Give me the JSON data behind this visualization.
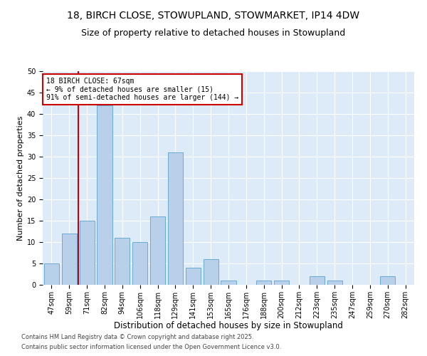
{
  "title_line1": "18, BIRCH CLOSE, STOWUPLAND, STOWMARKET, IP14 4DW",
  "title_line2": "Size of property relative to detached houses in Stowupland",
  "xlabel": "Distribution of detached houses by size in Stowupland",
  "ylabel": "Number of detached properties",
  "categories": [
    "47sqm",
    "59sqm",
    "71sqm",
    "82sqm",
    "94sqm",
    "106sqm",
    "118sqm",
    "129sqm",
    "141sqm",
    "153sqm",
    "165sqm",
    "176sqm",
    "188sqm",
    "200sqm",
    "212sqm",
    "223sqm",
    "235sqm",
    "247sqm",
    "259sqm",
    "270sqm",
    "282sqm"
  ],
  "values": [
    5,
    12,
    15,
    42,
    11,
    10,
    16,
    31,
    4,
    6,
    1,
    0,
    1,
    1,
    0,
    2,
    1,
    0,
    0,
    2,
    0
  ],
  "bar_color": "#b8d0ea",
  "bar_edge_color": "#6aaad4",
  "bar_width": 0.85,
  "vline_x_index": 1.5,
  "vline_color": "#cc0000",
  "annotation_text": "18 BIRCH CLOSE: 67sqm\n← 9% of detached houses are smaller (15)\n91% of semi-detached houses are larger (144) →",
  "annotation_box_color": "#ffffff",
  "annotation_box_edge": "#cc0000",
  "ylim": [
    0,
    50
  ],
  "yticks": [
    0,
    5,
    10,
    15,
    20,
    25,
    30,
    35,
    40,
    45,
    50
  ],
  "bg_color": "#ddeaf8",
  "footer_line1": "Contains HM Land Registry data © Crown copyright and database right 2025.",
  "footer_line2": "Contains public sector information licensed under the Open Government Licence v3.0.",
  "title_fontsize": 10,
  "subtitle_fontsize": 9,
  "xlabel_fontsize": 8.5,
  "ylabel_fontsize": 8,
  "tick_fontsize": 7,
  "annotation_fontsize": 7,
  "footer_fontsize": 6
}
